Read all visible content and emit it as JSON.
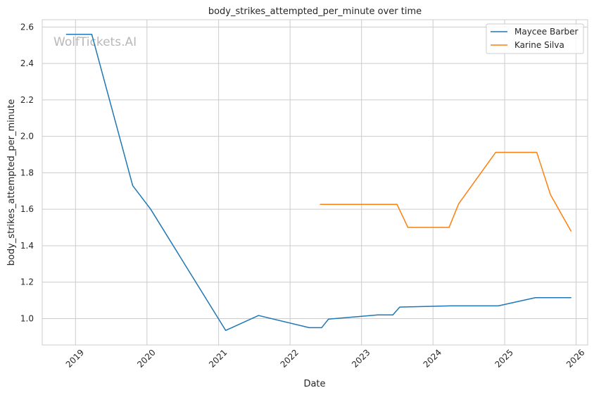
{
  "chart_data": {
    "type": "line",
    "title": "body_strikes_attempted_per_minute over time",
    "xlabel": "Date",
    "ylabel": "body_strikes_attempted_per_minute",
    "watermark": "WolfTickets.AI",
    "x_ticks": [
      "2019",
      "2020",
      "2021",
      "2022",
      "2023",
      "2024",
      "2025",
      "2026"
    ],
    "y_ticks": [
      "1.0",
      "1.2",
      "1.4",
      "1.6",
      "1.8",
      "2.0",
      "2.2",
      "2.4",
      "2.6"
    ],
    "xlim": [
      "2018-07-15",
      "2026-03-01"
    ],
    "ylim": [
      0.855,
      2.64
    ],
    "grid": true,
    "legend_position": "top-right",
    "series": [
      {
        "name": "Maycee Barber",
        "color": "#1f77b4",
        "points": [
          [
            "2018-11-15",
            2.56
          ],
          [
            "2019-03-25",
            2.56
          ],
          [
            "2019-10-20",
            1.73
          ],
          [
            "2020-01-20",
            1.6
          ],
          [
            "2021-02-06",
            0.935
          ],
          [
            "2021-07-24",
            1.017
          ],
          [
            "2022-04-09",
            0.95
          ],
          [
            "2022-06-11",
            0.95
          ],
          [
            "2022-07-16",
            0.997
          ],
          [
            "2023-03-25",
            1.02
          ],
          [
            "2023-06-10",
            1.02
          ],
          [
            "2023-07-15",
            1.063
          ],
          [
            "2024-03-30",
            1.07
          ],
          [
            "2024-11-30",
            1.07
          ],
          [
            "2025-06-07",
            1.115
          ],
          [
            "2025-12-06",
            1.115
          ]
        ]
      },
      {
        "name": "Karine Silva",
        "color": "#ff7f0e",
        "points": [
          [
            "2022-06-04",
            1.627
          ],
          [
            "2023-07-01",
            1.627
          ],
          [
            "2023-08-26",
            1.5
          ],
          [
            "2024-03-23",
            1.5
          ],
          [
            "2024-05-11",
            1.63
          ],
          [
            "2024-11-16",
            1.912
          ],
          [
            "2025-06-14",
            1.912
          ],
          [
            "2025-08-23",
            1.68
          ],
          [
            "2025-12-06",
            1.48
          ]
        ]
      }
    ]
  }
}
